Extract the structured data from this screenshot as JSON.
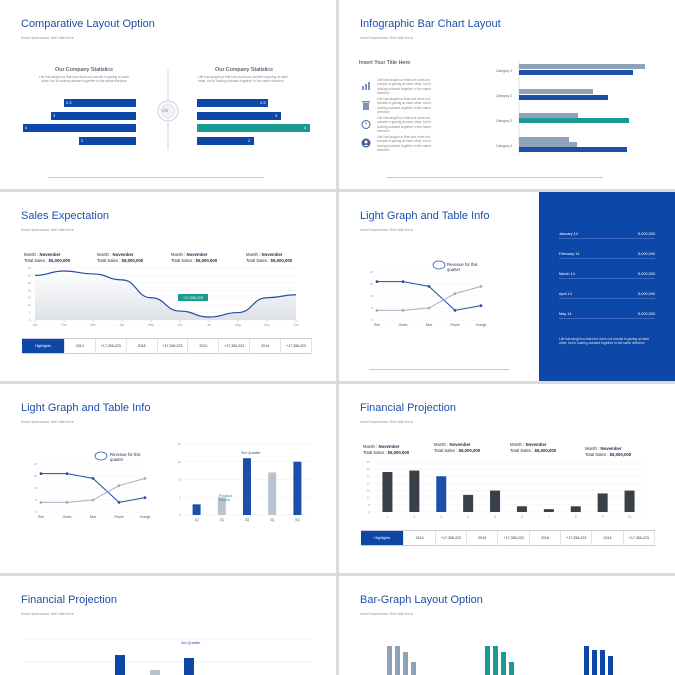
{
  "common": {
    "subtitle": "Insert Awesome Sub title here",
    "body_text": "Life has taught us that love does not consist in gazing at each other, but in looking outward together in the same direction"
  },
  "slide1": {
    "title": "Comparative Layout Option",
    "left_heading": "Our Company Statistics",
    "right_heading": "Our Company Statistics",
    "center_label": "VS",
    "left_values": [
      "2.5",
      "3",
      "4",
      "2"
    ],
    "right_values": [
      "2.5",
      "3",
      "4",
      "2"
    ],
    "colors": {
      "blue": "#0d47a8",
      "teal": "#199a92"
    }
  },
  "slide2": {
    "title": "Infographic Bar Chart Layout",
    "heading": "Insert Your Title Here",
    "icons": [
      "bar-chart-icon",
      "trash-icon",
      "timer-icon",
      "person-icon"
    ],
    "categories": [
      "Category 1",
      "Category 2",
      "Category 3",
      "Category 4"
    ],
    "colors": {
      "grey": "#8fa3b8",
      "blue": "#1e4fa8",
      "teal": "#199a92"
    }
  },
  "slide3": {
    "title": "Sales Expectation",
    "months": [
      {
        "month_label": "Month :",
        "month": "November",
        "sales_label": "Total Sales :",
        "sales": "$5,000,000"
      },
      {
        "month_label": "Month :",
        "month": "November",
        "sales_label": "Total Sales :",
        "sales": "$5,000,000"
      },
      {
        "month_label": "Month :",
        "month": "November",
        "sales_label": "Total Sales :",
        "sales": "$5,000,000"
      },
      {
        "month_label": "Month :",
        "month": "November",
        "sales_label": "Total Sales :",
        "sales": "$5,000,000"
      }
    ],
    "callout": "+17,356,223",
    "table": [
      "Highlights",
      "2014",
      "+17,356,223",
      "2018",
      "+17,356,223",
      "2010",
      "+17,356,223",
      "2014",
      "+17,356,223"
    ]
  },
  "slide4": {
    "title": "Light Graph and Table Info",
    "annotation": "Revenue for this quarter",
    "categories": [
      "Red",
      "Green",
      "Blue",
      "Purple",
      "Orange"
    ],
    "panel_rows": [
      {
        "label": "January 14",
        "value": "5,000,000"
      },
      {
        "label": "February 14",
        "value": "5,000,000"
      },
      {
        "label": "March 14",
        "value": "5,000,000"
      },
      {
        "label": "April 14",
        "value": "5,000,000"
      },
      {
        "label": "May 14",
        "value": "5,000,000"
      }
    ]
  },
  "slide5": {
    "title": "Light Graph and Table Info",
    "annotation": "Revenue for this quarter",
    "categories": [
      "Red",
      "Green",
      "Blue",
      "Purple",
      "Orange"
    ],
    "bar_labels": [
      "1Q",
      "2Q",
      "3Q",
      "4Q",
      "5Q"
    ],
    "bar_annotation_1": "3rd Quarter",
    "bar_annotation_2": "Product Issues"
  },
  "slide6": {
    "title": "Financial Projection",
    "months": [
      {
        "month_label": "Month :",
        "month": "November",
        "sales_label": "Total Sales :",
        "sales": "$5,000,000"
      },
      {
        "month_label": "Month :",
        "month": "November",
        "sales_label": "Total Sales :",
        "sales": "$5,000,000"
      },
      {
        "month_label": "Month :",
        "month": "November",
        "sales_label": "Total Sales :",
        "sales": "$5,000,000"
      },
      {
        "month_label": "Month :",
        "month": "November",
        "sales_label": "Total Sales :",
        "sales": "$5,000,000"
      }
    ],
    "table": [
      "Highlights",
      "2014",
      "+17,356,223",
      "2019",
      "+17,356,223",
      "2018",
      "+17,356,223",
      "2014",
      "+17,356,223"
    ]
  },
  "slide7": {
    "title": "Financial Projection",
    "annotation": "3rd Quarter"
  },
  "slide8": {
    "title": "Bar-Graph Layout Option"
  },
  "chart_data": [
    {
      "type": "line",
      "title": "Sales Expectation",
      "x": [
        "Jan",
        "Feb",
        "Mar",
        "Apr",
        "May",
        "Jun",
        "Jul",
        "Aug",
        "Sep",
        "Oct"
      ],
      "series": [
        {
          "values": [
            30,
            33,
            31,
            27,
            15,
            6,
            2,
            5,
            15,
            17
          ]
        }
      ],
      "ylim": [
        0,
        35
      ]
    },
    {
      "type": "line",
      "title": "Light Graph and Table Info",
      "categories": [
        "Red",
        "Green",
        "Blue",
        "Purple",
        "Orange"
      ],
      "series": [
        {
          "values": [
            16,
            16,
            14,
            4,
            6
          ]
        },
        {
          "values": [
            4,
            4,
            5,
            11,
            14
          ]
        }
      ],
      "ylim": [
        0,
        20
      ]
    },
    {
      "type": "bar",
      "title": "Light Graph and Table Info",
      "categories": [
        "1Q",
        "2Q",
        "3Q",
        "4Q",
        "5Q"
      ],
      "values": [
        3,
        5,
        16,
        12,
        15
      ],
      "ylim": [
        0,
        20
      ]
    },
    {
      "type": "bar",
      "title": "Financial Projection",
      "categories": [
        "1",
        "2",
        "3",
        "4",
        "5",
        "6",
        "7",
        "8",
        "9",
        "10"
      ],
      "values": [
        28,
        29,
        25,
        12,
        15,
        4,
        2,
        4,
        13,
        15
      ],
      "ylim": [
        0,
        35
      ]
    }
  ]
}
